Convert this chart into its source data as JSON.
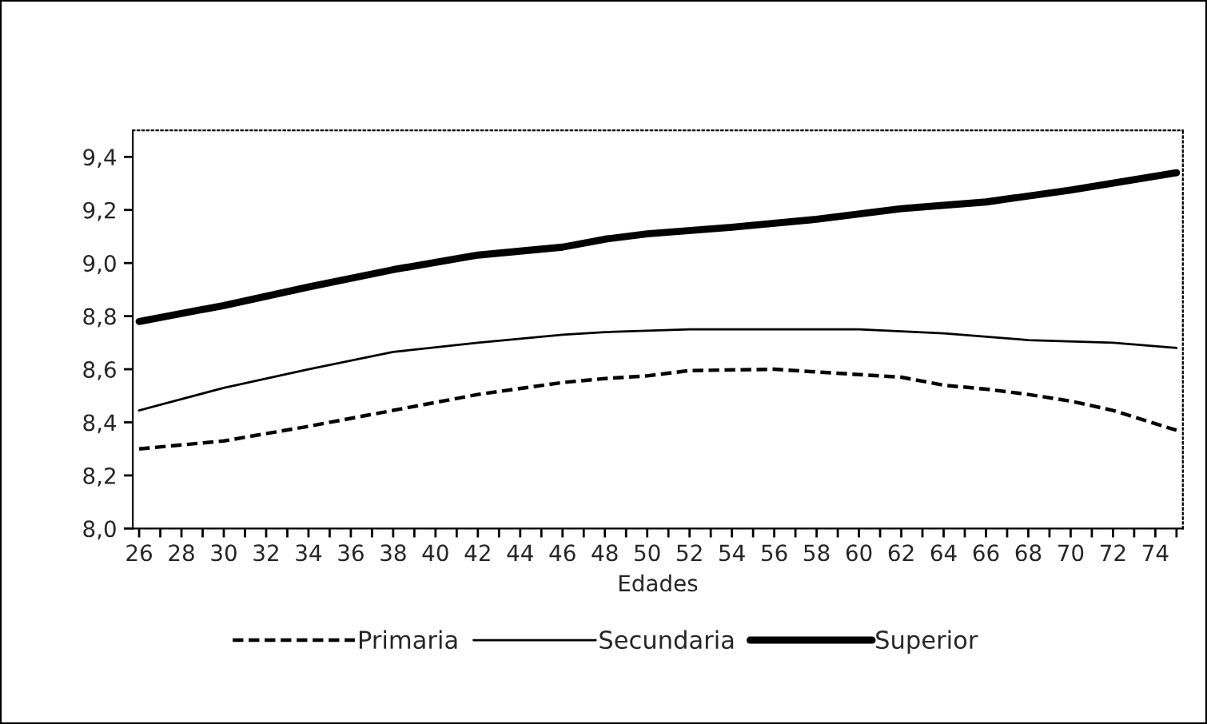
{
  "chart_data": {
    "type": "line",
    "xlabel": "Edades",
    "xlim": [
      25.7,
      75.3
    ],
    "ylim": [
      8.0,
      9.5
    ],
    "xticks": [
      26,
      {
        "value": 27,
        "label": null
      },
      28,
      {
        "value": 29,
        "label": null
      },
      30,
      {
        "value": 31,
        "label": null
      },
      32,
      {
        "value": 33,
        "label": null
      },
      34,
      {
        "value": 35,
        "label": null
      },
      36,
      {
        "value": 37,
        "label": null
      },
      38,
      {
        "value": 39,
        "label": null
      },
      40,
      {
        "value": 41,
        "label": null
      },
      42,
      {
        "value": 43,
        "label": null
      },
      44,
      {
        "value": 45,
        "label": null
      },
      46,
      {
        "value": 47,
        "label": null
      },
      48,
      {
        "value": 49,
        "label": null
      },
      50,
      {
        "value": 51,
        "label": null
      },
      52,
      {
        "value": 53,
        "label": null
      },
      54,
      {
        "value": 55,
        "label": null
      },
      56,
      {
        "value": 57,
        "label": null
      },
      58,
      {
        "value": 59,
        "label": null
      },
      60,
      {
        "value": 61,
        "label": null
      },
      62,
      {
        "value": 63,
        "label": null
      },
      64,
      {
        "value": 65,
        "label": null
      },
      66,
      {
        "value": 67,
        "label": null
      },
      68,
      {
        "value": 69,
        "label": null
      },
      70,
      {
        "value": 71,
        "label": null
      },
      72,
      {
        "value": 73,
        "label": null
      },
      74,
      {
        "value": 75,
        "label": null
      }
    ],
    "yticks": [
      {
        "value": 8.0,
        "label": "8,0"
      },
      {
        "value": 8.2,
        "label": "8,2"
      },
      {
        "value": 8.4,
        "label": "8,4"
      },
      {
        "value": 8.6,
        "label": "8,6"
      },
      {
        "value": 8.8,
        "label": "8,8"
      },
      {
        "value": 9.0,
        "label": "9,0"
      },
      {
        "value": 9.2,
        "label": "9,2"
      },
      {
        "value": 9.4,
        "label": "9,4"
      }
    ],
    "grid": false,
    "legend": "bottom",
    "marker": "none",
    "series": [
      {
        "name": "Primaria",
        "color": "#000000",
        "line_style": "dashed",
        "x": [
          26,
          30,
          34,
          38,
          42,
          46,
          48,
          50,
          52,
          56,
          60,
          62,
          64,
          66,
          68,
          70,
          72,
          75
        ],
        "values": [
          8.3,
          8.33,
          8.385,
          8.445,
          8.505,
          8.55,
          8.565,
          8.575,
          8.595,
          8.6,
          8.58,
          8.57,
          8.54,
          8.525,
          8.505,
          8.48,
          8.445,
          8.37
        ]
      },
      {
        "name": "Secundaria",
        "color": "#000000",
        "line_style": "solid",
        "x": [
          26,
          30,
          34,
          38,
          42,
          46,
          48,
          52,
          60,
          64,
          68,
          72,
          75
        ],
        "values": [
          8.445,
          8.53,
          8.6,
          8.665,
          8.7,
          8.73,
          8.74,
          8.75,
          8.75,
          8.735,
          8.71,
          8.7,
          8.68
        ]
      },
      {
        "name": "Superior",
        "color": "#000000",
        "line_style": "solid",
        "x": [
          26,
          30,
          34,
          38,
          42,
          46,
          48,
          50,
          54,
          58,
          62,
          66,
          70,
          75
        ],
        "values": [
          8.78,
          8.84,
          8.91,
          8.975,
          9.03,
          9.06,
          9.09,
          9.11,
          9.135,
          9.165,
          9.205,
          9.23,
          9.275,
          9.34
        ]
      }
    ]
  }
}
